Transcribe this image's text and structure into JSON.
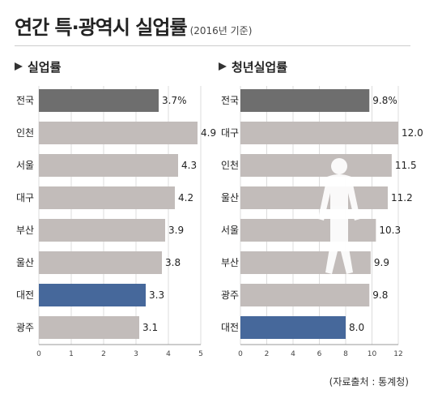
{
  "header": {
    "title": "연간 특·광역시 실업률",
    "subtitle": "(2016년 기준)"
  },
  "source": "(자료출처 : 통계청)",
  "colors": {
    "highlight_dark": "#6e6e6e",
    "highlight_blue": "#46689b",
    "default_bar": "#c2bcba",
    "grid": "#dcdcdc"
  },
  "icons": [
    "triangle-bullet-icon",
    "person-silhouette-icon"
  ],
  "chart_data": [
    {
      "type": "bar",
      "orientation": "horizontal",
      "title": "실업률",
      "categories": [
        "전국",
        "인천",
        "서울",
        "대구",
        "부산",
        "울산",
        "대전",
        "광주"
      ],
      "values": [
        3.7,
        4.9,
        4.3,
        4.2,
        3.9,
        3.8,
        3.3,
        3.1
      ],
      "value_labels": [
        "3.7%",
        "4.9",
        "4.3",
        "4.2",
        "3.9",
        "3.8",
        "3.3",
        "3.1"
      ],
      "highlight": {
        "전국": "dark",
        "대전": "blue"
      },
      "xlim": [
        0,
        5
      ],
      "xticks": [
        0,
        1,
        2,
        3,
        4,
        5
      ],
      "grid": true
    },
    {
      "type": "bar",
      "orientation": "horizontal",
      "title": "청년실업률",
      "categories": [
        "전국",
        "대구",
        "인천",
        "울산",
        "서울",
        "부산",
        "광주",
        "대전"
      ],
      "values": [
        9.8,
        12.0,
        11.5,
        11.2,
        10.3,
        9.9,
        9.8,
        8.0
      ],
      "value_labels": [
        "9.8%",
        "12.0",
        "11.5",
        "11.2",
        "10.3",
        "9.9",
        "9.8",
        "8.0"
      ],
      "highlight": {
        "전국": "dark",
        "대전": "blue"
      },
      "xlim": [
        0,
        12
      ],
      "xticks": [
        0,
        2,
        4,
        6,
        8,
        10,
        12
      ],
      "grid": true
    }
  ]
}
